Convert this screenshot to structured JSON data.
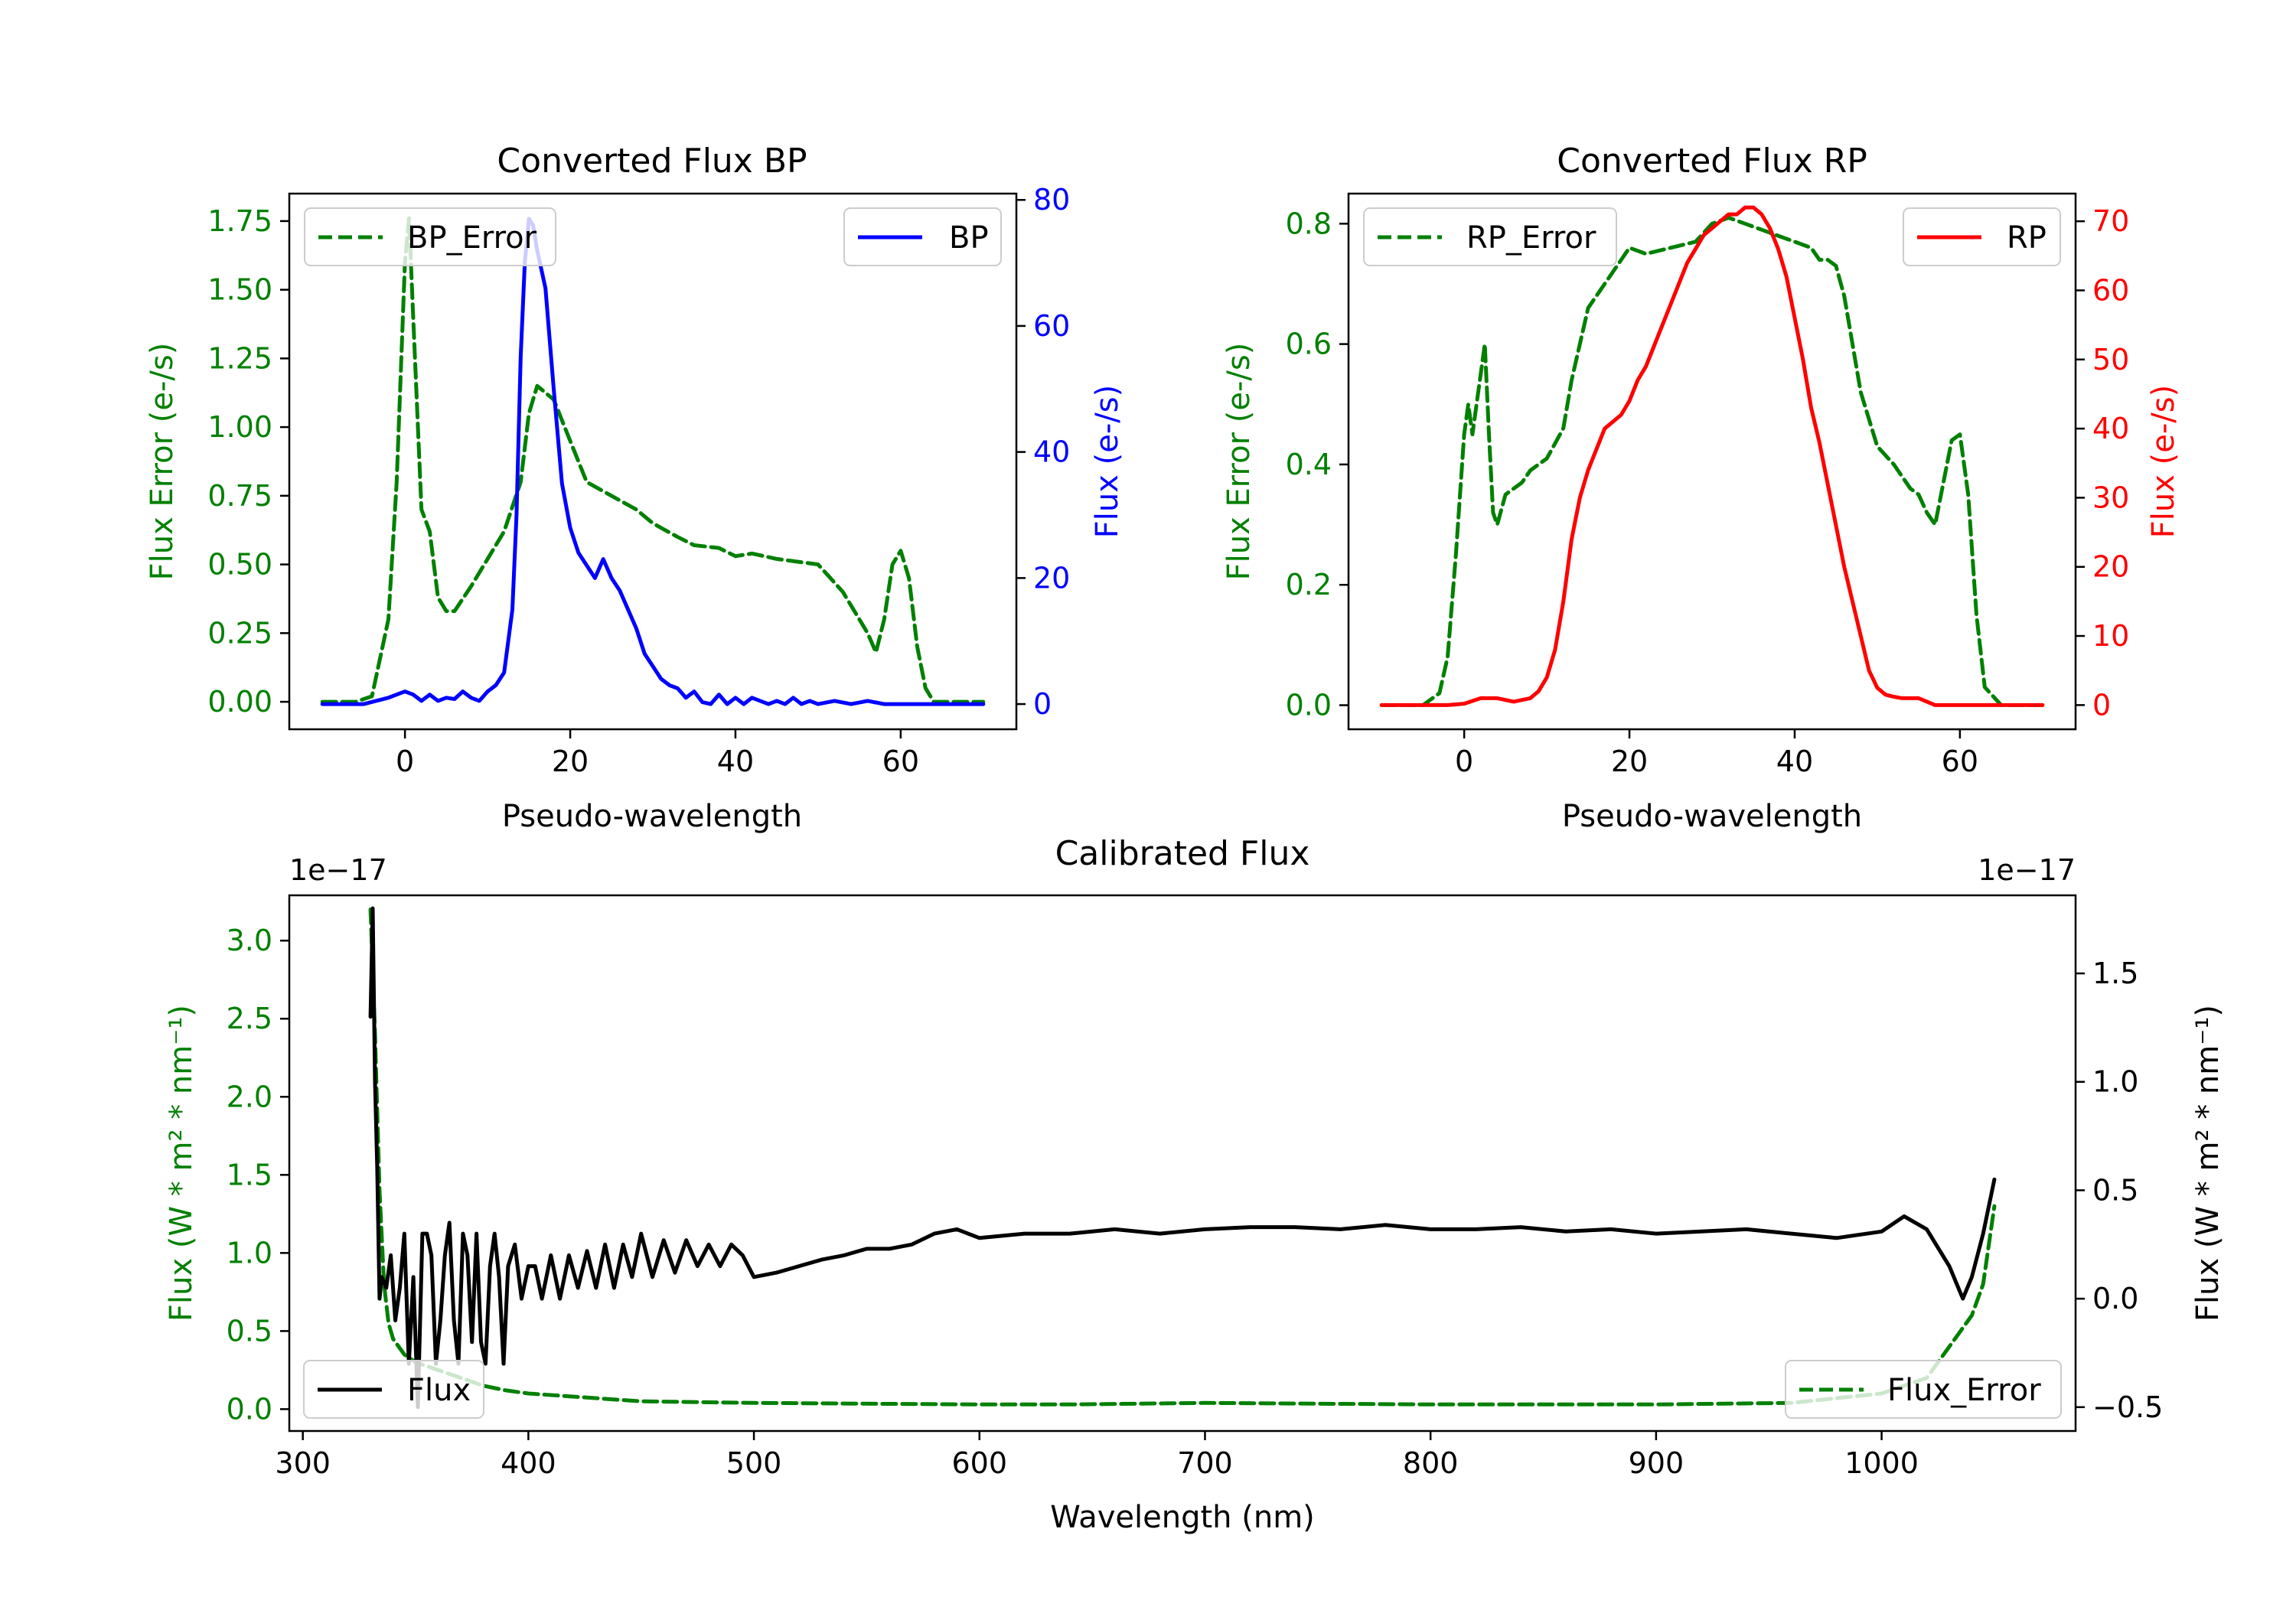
{
  "chart_data": [
    {
      "id": "bp",
      "type": "line",
      "title": "Converted Flux BP",
      "xlabel": "Pseudo-wavelength",
      "xlim": [
        -14,
        74
      ],
      "xticks": [
        0,
        20,
        40,
        60
      ],
      "left_axis": {
        "label": "Flux Error (e-/s)",
        "color": "#008000",
        "lim": [
          -0.1,
          1.85
        ],
        "ticks": [
          "0.00",
          "0.25",
          "0.50",
          "0.75",
          "1.00",
          "1.25",
          "1.50",
          "1.75"
        ]
      },
      "right_axis": {
        "label": "Flux (e-/s)",
        "color": "#0000ff",
        "lim": [
          -4,
          81
        ],
        "ticks": [
          "0",
          "20",
          "40",
          "60",
          "80"
        ]
      },
      "series": [
        {
          "name": "BP_Error",
          "axis": "left",
          "color": "#008000",
          "dash": true,
          "x": [
            -10,
            -6,
            -4,
            -2,
            -1,
            0,
            0.5,
            1,
            2,
            3,
            4,
            5,
            6,
            8,
            10,
            12,
            14,
            15,
            16,
            18,
            20,
            22,
            25,
            28,
            30,
            33,
            35,
            38,
            40,
            42,
            45,
            50,
            53,
            56,
            57,
            58,
            59,
            60,
            61,
            62,
            63,
            64,
            66,
            70
          ],
          "values": [
            0,
            0,
            0.02,
            0.3,
            0.8,
            1.6,
            1.76,
            1.4,
            0.7,
            0.62,
            0.38,
            0.33,
            0.33,
            0.42,
            0.52,
            0.62,
            0.8,
            1.05,
            1.15,
            1.1,
            0.95,
            0.8,
            0.75,
            0.7,
            0.65,
            0.6,
            0.57,
            0.56,
            0.53,
            0.54,
            0.52,
            0.5,
            0.4,
            0.25,
            0.18,
            0.3,
            0.5,
            0.55,
            0.45,
            0.2,
            0.05,
            0,
            0,
            0
          ]
        },
        {
          "name": "BP",
          "axis": "right",
          "color": "#0000ff",
          "dash": false,
          "x": [
            -10,
            -5,
            -2,
            0,
            1,
            2,
            3,
            4,
            5,
            6,
            7,
            8,
            9,
            10,
            11,
            12,
            13,
            13.5,
            14,
            14.5,
            15,
            15.5,
            16,
            17,
            18,
            19,
            20,
            21,
            22,
            23,
            24,
            25,
            26,
            27,
            28,
            29,
            30,
            31,
            32,
            33,
            34,
            35,
            36,
            37,
            38,
            39,
            40,
            41,
            42,
            43,
            44,
            45,
            46,
            47,
            48,
            49,
            50,
            52,
            54,
            56,
            58,
            60,
            70
          ],
          "values": [
            0,
            0,
            1,
            2,
            1.5,
            0.5,
            1.5,
            0.5,
            1,
            0.8,
            2,
            1,
            0.5,
            2,
            3,
            5,
            15,
            30,
            55,
            70,
            77,
            76,
            72,
            66,
            50,
            35,
            28,
            24,
            22,
            20,
            23,
            20,
            18,
            15,
            12,
            8,
            6,
            4,
            3,
            2.5,
            1,
            2,
            0.3,
            0,
            1.5,
            0,
            1,
            0,
            1,
            0.5,
            0,
            0.5,
            0,
            1,
            0,
            0.5,
            0,
            0.5,
            0,
            0.5,
            0,
            0,
            0
          ]
        }
      ]
    },
    {
      "id": "rp",
      "type": "line",
      "title": "Converted Flux RP",
      "xlabel": "Pseudo-wavelength",
      "xlim": [
        -14,
        74
      ],
      "xticks": [
        0,
        20,
        40,
        60
      ],
      "left_axis": {
        "label": "Flux Error (e-/s)",
        "color": "#008000",
        "lim": [
          -0.04,
          0.85
        ],
        "ticks": [
          "0.0",
          "0.2",
          "0.4",
          "0.6",
          "0.8"
        ]
      },
      "right_axis": {
        "label": "Flux (e-/s)",
        "color": "#ff0000",
        "lim": [
          -3.5,
          74
        ],
        "ticks": [
          "0",
          "10",
          "20",
          "30",
          "40",
          "50",
          "60",
          "70"
        ]
      },
      "series": [
        {
          "name": "RP_Error",
          "axis": "left",
          "color": "#008000",
          "dash": true,
          "x": [
            -10,
            -5,
            -3,
            -2,
            -1,
            0,
            0.5,
            1,
            1.5,
            2,
            2.5,
            3,
            3.5,
            4,
            5,
            6,
            7,
            8,
            9,
            10,
            12,
            13,
            15,
            17,
            19,
            20,
            22,
            25,
            28,
            30,
            32,
            34,
            36,
            38,
            40,
            42,
            43,
            44,
            45,
            46,
            47,
            48,
            50,
            52,
            54,
            55,
            56,
            57,
            58,
            59,
            60,
            61,
            62,
            63,
            65,
            70
          ],
          "values": [
            0,
            0,
            0.02,
            0.08,
            0.25,
            0.45,
            0.5,
            0.45,
            0.5,
            0.55,
            0.6,
            0.45,
            0.32,
            0.3,
            0.35,
            0.36,
            0.37,
            0.39,
            0.4,
            0.41,
            0.46,
            0.54,
            0.66,
            0.7,
            0.74,
            0.76,
            0.75,
            0.76,
            0.77,
            0.8,
            0.81,
            0.8,
            0.79,
            0.78,
            0.77,
            0.76,
            0.74,
            0.74,
            0.73,
            0.68,
            0.6,
            0.52,
            0.43,
            0.4,
            0.36,
            0.35,
            0.32,
            0.3,
            0.37,
            0.44,
            0.45,
            0.35,
            0.15,
            0.03,
            0,
            0
          ]
        },
        {
          "name": "RP",
          "axis": "right",
          "color": "#ff0000",
          "dash": false,
          "x": [
            -10,
            -5,
            -2,
            0,
            2,
            4,
            6,
            8,
            9,
            10,
            11,
            12,
            13,
            14,
            15,
            16,
            17,
            18,
            19,
            20,
            21,
            22,
            23,
            24,
            25,
            26,
            27,
            28,
            29,
            30,
            31,
            32,
            33,
            34,
            35,
            36,
            37,
            38,
            39,
            40,
            41,
            42,
            43,
            44,
            45,
            46,
            47,
            48,
            49,
            50,
            51,
            52,
            53,
            54,
            55,
            56,
            57,
            58,
            60,
            62,
            65,
            70
          ],
          "values": [
            0,
            0,
            0,
            0.2,
            1,
            1,
            0.5,
            1,
            2,
            4,
            8,
            15,
            24,
            30,
            34,
            37,
            40,
            41,
            42,
            44,
            47,
            49,
            52,
            55,
            58,
            61,
            64,
            66,
            68,
            69,
            70,
            71,
            71,
            72,
            72,
            71,
            69,
            66,
            62,
            56,
            50,
            43,
            38,
            32,
            26,
            20,
            15,
            10,
            5,
            2.5,
            1.5,
            1.2,
            1,
            1,
            1,
            0.5,
            0,
            0,
            0,
            0,
            0,
            0
          ]
        }
      ]
    },
    {
      "id": "cal",
      "type": "line",
      "title": "Calibrated Flux",
      "xlabel": "Wavelength (nm)",
      "xlim": [
        294,
        1086
      ],
      "xticks": [
        300,
        400,
        500,
        600,
        700,
        800,
        900,
        1000
      ],
      "left_axis": {
        "label": "Flux (W * m² * nm⁻¹)",
        "color": "#008000",
        "lim": [
          -0.14,
          3.29
        ],
        "ticks": [
          "0.0",
          "0.5",
          "1.0",
          "1.5",
          "2.0",
          "2.5",
          "3.0"
        ],
        "offset": "1e−17"
      },
      "right_axis": {
        "label": "Flux (W * m² * nm⁻¹)",
        "color": "#000000",
        "lim": [
          -0.61,
          1.86
        ],
        "ticks": [
          "−0.5",
          "0.0",
          "0.5",
          "1.0",
          "1.5"
        ],
        "offset": "1e−17"
      },
      "series": [
        {
          "name": "Flux_Error",
          "axis": "left",
          "color": "#008000",
          "dash": true,
          "x": [
            330,
            332,
            334,
            336,
            338,
            340,
            345,
            350,
            360,
            370,
            380,
            390,
            400,
            450,
            500,
            600,
            640,
            700,
            800,
            900,
            960,
            1000,
            1020,
            1030,
            1035,
            1040,
            1045,
            1050
          ],
          "values": [
            3.2,
            2.4,
            1.4,
            0.8,
            0.55,
            0.45,
            0.35,
            0.3,
            0.25,
            0.2,
            0.15,
            0.12,
            0.1,
            0.05,
            0.04,
            0.03,
            0.03,
            0.04,
            0.03,
            0.03,
            0.04,
            0.1,
            0.2,
            0.4,
            0.5,
            0.6,
            0.8,
            1.3
          ]
        },
        {
          "name": "Flux",
          "axis": "right",
          "color": "#000000",
          "dash": false,
          "x": [
            330,
            331,
            332,
            333,
            334,
            335,
            337,
            339,
            341,
            343,
            345,
            347,
            349,
            351,
            353,
            355,
            357,
            359,
            361,
            363,
            365,
            367,
            369,
            371,
            373,
            375,
            377,
            379,
            381,
            383,
            385,
            387,
            389,
            391,
            394,
            397,
            400,
            403,
            406,
            410,
            414,
            418,
            422,
            426,
            430,
            434,
            438,
            442,
            446,
            450,
            455,
            460,
            465,
            470,
            475,
            480,
            485,
            490,
            495,
            500,
            510,
            520,
            530,
            540,
            550,
            560,
            570,
            580,
            590,
            600,
            620,
            640,
            660,
            680,
            700,
            720,
            740,
            760,
            780,
            800,
            820,
            840,
            860,
            880,
            900,
            920,
            940,
            960,
            980,
            1000,
            1010,
            1020,
            1030,
            1036,
            1040,
            1045,
            1050
          ],
          "values": [
            1.3,
            1.8,
            1.0,
            0.6,
            0.0,
            0.1,
            0.05,
            0.2,
            -0.1,
            0.05,
            0.3,
            -0.3,
            0.1,
            -0.5,
            0.3,
            0.3,
            0.2,
            -0.3,
            -0.1,
            0.2,
            0.35,
            -0.1,
            -0.3,
            0.3,
            0.2,
            -0.2,
            0.3,
            -0.2,
            -0.3,
            0.15,
            0.3,
            0.1,
            -0.3,
            0.15,
            0.25,
            0.0,
            0.15,
            0.15,
            0.0,
            0.2,
            0.0,
            0.2,
            0.05,
            0.22,
            0.05,
            0.25,
            0.05,
            0.25,
            0.1,
            0.3,
            0.1,
            0.27,
            0.12,
            0.27,
            0.15,
            0.25,
            0.15,
            0.25,
            0.2,
            0.1,
            0.12,
            0.15,
            0.18,
            0.2,
            0.23,
            0.23,
            0.25,
            0.3,
            0.32,
            0.28,
            0.3,
            0.3,
            0.32,
            0.3,
            0.32,
            0.33,
            0.33,
            0.32,
            0.34,
            0.32,
            0.32,
            0.33,
            0.31,
            0.32,
            0.3,
            0.31,
            0.32,
            0.3,
            0.28,
            0.31,
            0.38,
            0.32,
            0.15,
            0.0,
            0.1,
            0.3,
            0.55
          ]
        }
      ]
    }
  ]
}
